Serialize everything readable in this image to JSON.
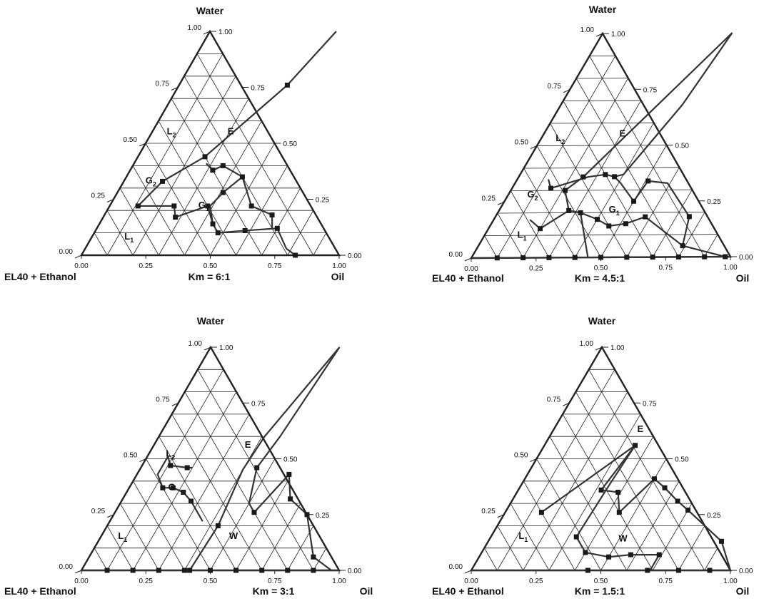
{
  "chart_data": [
    {
      "type": "scatter",
      "subtype": "ternary-phase-diagram",
      "title": "Km = 6:1",
      "vertices": {
        "top": "Water",
        "left": "EL40 +  Ethanol",
        "right": "Oil"
      },
      "left_ticks": [
        "0.00",
        "0.25",
        "0.50",
        "0.75",
        "1.00"
      ],
      "right_ticks": [
        "1.00",
        "0.75",
        "0.50",
        "0.25",
        "0.00"
      ],
      "bottom_ticks": [
        "0.00",
        "0.25",
        "0.50",
        "0.75",
        "1.00"
      ],
      "regions": [
        {
          "label": "E",
          "sub": "",
          "oil": 0.31,
          "water": 0.54
        },
        {
          "label": "L",
          "sub": "2",
          "oil": 0.08,
          "water": 0.54
        },
        {
          "label": "G",
          "sub": "2",
          "oil": 0.11,
          "water": 0.32
        },
        {
          "label": "G",
          "sub": "1",
          "oil": 0.37,
          "water": 0.21
        },
        {
          "label": "L",
          "sub": "1",
          "oil": 0.15,
          "water": 0.07
        }
      ],
      "boundaries": [
        [
          [
            0.49,
            1.0
          ],
          [
            0.42,
            0.76
          ],
          [
            0.26,
            0.44
          ],
          [
            0.15,
            0.33
          ],
          [
            0.11,
            0.22
          ],
          [
            0.25,
            0.22
          ],
          [
            0.28,
            0.17
          ],
          [
            0.38,
            0.22
          ],
          [
            0.44,
            0.14
          ]
        ],
        [
          [
            0.44,
            0.14
          ],
          [
            0.39,
            0.22
          ],
          [
            0.41,
            0.28
          ],
          [
            0.45,
            0.35
          ],
          [
            0.35,
            0.4
          ],
          [
            0.32,
            0.38
          ],
          [
            0.28,
            0.41
          ]
        ],
        [
          [
            0.44,
            0.14
          ],
          [
            0.48,
            0.1
          ],
          [
            0.58,
            0.11
          ],
          [
            0.7,
            0.12
          ],
          [
            0.78,
            0.03
          ]
        ],
        [
          [
            0.78,
            0.03
          ],
          [
            0.83,
            0.0
          ]
        ],
        [
          [
            0.45,
            0.35
          ],
          [
            0.55,
            0.22
          ],
          [
            0.65,
            0.18
          ],
          [
            0.68,
            0.12
          ]
        ]
      ],
      "points": [
        [
          0.42,
          0.76
        ],
        [
          0.26,
          0.44
        ],
        [
          0.15,
          0.33
        ],
        [
          0.11,
          0.22
        ],
        [
          0.25,
          0.22
        ],
        [
          0.28,
          0.17
        ],
        [
          0.38,
          0.22
        ],
        [
          0.44,
          0.14
        ],
        [
          0.41,
          0.28
        ],
        [
          0.45,
          0.35
        ],
        [
          0.35,
          0.4
        ],
        [
          0.32,
          0.38
        ],
        [
          0.48,
          0.1
        ],
        [
          0.58,
          0.11
        ],
        [
          0.7,
          0.12
        ],
        [
          0.83,
          0.0
        ],
        [
          0.55,
          0.22
        ],
        [
          0.65,
          0.18
        ]
      ]
    },
    {
      "type": "scatter",
      "subtype": "ternary-phase-diagram",
      "title": "Km = 4.5:1",
      "vertices": {
        "top": "Water",
        "left": "EL40 +  Ethanol",
        "right": "Oil"
      },
      "left_ticks": [
        "0.00",
        "0.25",
        "0.50",
        "0.75",
        "1.00"
      ],
      "right_ticks": [
        "1.00",
        "0.75",
        "0.50",
        "0.25",
        "0.00"
      ],
      "bottom_ticks": [
        "0.00",
        "0.25",
        "0.50",
        "0.75",
        "1.00"
      ],
      "regions": [
        {
          "label": "E",
          "sub": "",
          "oil": 0.31,
          "water": 0.54
        },
        {
          "label": "L",
          "sub": "2",
          "oil": 0.08,
          "water": 0.52
        },
        {
          "label": "G",
          "sub": "2",
          "oil": 0.1,
          "water": 0.27
        },
        {
          "label": "G",
          "sub": "1",
          "oil": 0.45,
          "water": 0.2
        },
        {
          "label": "L",
          "sub": "1",
          "oil": 0.15,
          "water": 0.09
        }
      ],
      "boundaries": [
        [
          [
            0.5,
            1.0
          ],
          [
            0.25,
            0.36
          ],
          [
            0.21,
            0.3
          ],
          [
            0.27,
            0.21
          ],
          [
            0.2,
            0.13
          ],
          [
            0.14,
            0.17
          ]
        ],
        [
          [
            0.5,
            1.0
          ],
          [
            0.47,
            0.68
          ],
          [
            0.4,
            0.37
          ],
          [
            0.37,
            0.36
          ]
        ],
        [
          [
            0.12,
            0.35
          ],
          [
            0.15,
            0.31
          ],
          [
            0.27,
            0.36
          ],
          [
            0.33,
            0.37
          ],
          [
            0.37,
            0.36
          ],
          [
            0.41,
            0.33
          ],
          [
            0.5,
            0.25
          ],
          [
            0.51,
            0.34
          ],
          [
            0.59,
            0.33
          ],
          [
            0.75,
            0.18
          ],
          [
            0.79,
            0.05
          ]
        ],
        [
          [
            0.27,
            0.21
          ],
          [
            0.32,
            0.2
          ],
          [
            0.4,
            0.17
          ],
          [
            0.46,
            0.14
          ],
          [
            0.52,
            0.15
          ],
          [
            0.58,
            0.18
          ]
        ],
        [
          [
            0.32,
            0.2
          ],
          [
            0.45,
            0.0
          ]
        ],
        [
          [
            0.58,
            0.18
          ],
          [
            0.79,
            0.05
          ],
          [
            0.98,
            0.0
          ]
        ],
        [
          [
            0.0,
            0.0
          ],
          [
            1.0,
            0.0
          ]
        ]
      ],
      "points": [
        [
          0.25,
          0.36
        ],
        [
          0.21,
          0.3
        ],
        [
          0.27,
          0.21
        ],
        [
          0.2,
          0.13
        ],
        [
          0.15,
          0.31
        ],
        [
          0.33,
          0.37
        ],
        [
          0.37,
          0.36
        ],
        [
          0.5,
          0.25
        ],
        [
          0.51,
          0.34
        ],
        [
          0.75,
          0.18
        ],
        [
          0.32,
          0.2
        ],
        [
          0.4,
          0.17
        ],
        [
          0.46,
          0.14
        ],
        [
          0.52,
          0.15
        ],
        [
          0.58,
          0.18
        ],
        [
          0.79,
          0.05
        ],
        [
          0.1,
          0.0
        ],
        [
          0.2,
          0.0
        ],
        [
          0.3,
          0.0
        ],
        [
          0.4,
          0.0
        ],
        [
          0.5,
          0.0
        ],
        [
          0.6,
          0.0
        ],
        [
          0.7,
          0.0
        ],
        [
          0.8,
          0.0
        ],
        [
          0.9,
          0.0
        ],
        [
          0.98,
          0.0
        ]
      ]
    },
    {
      "type": "scatter",
      "subtype": "ternary-phase-diagram",
      "title": "Km = 3:1",
      "vertices": {
        "top": "Water",
        "left": "EL40 +  Ethanol",
        "right": "Oil"
      },
      "left_ticks": [
        "0.00",
        "0.25",
        "0.50",
        "0.75",
        "1.00"
      ],
      "right_ticks": [
        "1.00",
        "0.75",
        "0.50",
        "0.25",
        "0.00"
      ],
      "bottom_ticks": [
        "0.00",
        "0.25",
        "0.50",
        "0.75",
        "1.00"
      ],
      "regions": [
        {
          "label": "E",
          "sub": "",
          "oil": 0.37,
          "water": 0.55
        },
        {
          "label": "L",
          "sub": "2",
          "oil": 0.09,
          "water": 0.51
        },
        {
          "label": "G",
          "sub": "",
          "oil": 0.17,
          "water": 0.36
        },
        {
          "label": "W",
          "sub": "",
          "oil": 0.52,
          "water": 0.14
        },
        {
          "label": "L",
          "sub": "1",
          "oil": 0.09,
          "water": 0.14
        }
      ],
      "boundaries": [
        [
          [
            0.5,
            1.0
          ],
          [
            0.41,
            0.6
          ],
          [
            0.4,
            0.45
          ],
          [
            0.43,
            0.2
          ],
          [
            0.42,
            0.0
          ]
        ],
        [
          [
            0.5,
            1.0
          ],
          [
            0.47,
            0.6
          ],
          [
            0.45,
            0.46
          ],
          [
            0.5,
            0.3
          ],
          [
            0.54,
            0.26
          ],
          [
            0.59,
            0.43
          ],
          [
            0.65,
            0.32
          ],
          [
            0.75,
            0.25
          ],
          [
            0.87,
            0.06
          ],
          [
            0.97,
            0.0
          ]
        ],
        [
          [
            0.08,
            0.51
          ],
          [
            0.08,
            0.43
          ],
          [
            0.13,
            0.37
          ],
          [
            0.17,
            0.37
          ],
          [
            0.22,
            0.35
          ],
          [
            0.27,
            0.31
          ],
          [
            0.36,
            0.22
          ]
        ],
        [
          [
            0.08,
            0.51
          ],
          [
            0.11,
            0.47
          ],
          [
            0.18,
            0.46
          ],
          [
            0.2,
            0.46
          ]
        ],
        [
          [
            0.0,
            0.0
          ],
          [
            1.0,
            0.0
          ]
        ]
      ],
      "points": [
        [
          0.43,
          0.2
        ],
        [
          0.42,
          0.0
        ],
        [
          0.45,
          0.46
        ],
        [
          0.54,
          0.26
        ],
        [
          0.59,
          0.43
        ],
        [
          0.65,
          0.32
        ],
        [
          0.75,
          0.25
        ],
        [
          0.87,
          0.06
        ],
        [
          0.13,
          0.37
        ],
        [
          0.17,
          0.37
        ],
        [
          0.22,
          0.35
        ],
        [
          0.27,
          0.31
        ],
        [
          0.11,
          0.47
        ],
        [
          0.18,
          0.46
        ],
        [
          0.1,
          0.0
        ],
        [
          0.2,
          0.0
        ],
        [
          0.3,
          0.0
        ],
        [
          0.4,
          0.0
        ],
        [
          0.5,
          0.0
        ],
        [
          0.6,
          0.0
        ],
        [
          0.7,
          0.0
        ],
        [
          0.8,
          0.0
        ],
        [
          0.9,
          0.0
        ]
      ]
    },
    {
      "type": "scatter",
      "subtype": "ternary-phase-diagram",
      "title": "Km = 1.5:1",
      "vertices": {
        "top": "Water",
        "left": "EL40 +  Ethanol",
        "right": "Oil"
      },
      "left_ticks": [
        "0.00",
        "0.25",
        "0.50",
        "0.75",
        "1.00"
      ],
      "right_ticks": [
        "1.00",
        "0.75",
        "0.50",
        "0.25",
        "0.00"
      ],
      "bottom_ticks": [
        "0.00",
        "0.25",
        "0.50",
        "0.75",
        "1.00"
      ],
      "regions": [
        {
          "label": "E",
          "sub": "",
          "oil": 0.34,
          "water": 0.62
        },
        {
          "label": "L",
          "sub": "1",
          "oil": 0.13,
          "water": 0.14
        },
        {
          "label": "W",
          "sub": "",
          "oil": 0.52,
          "water": 0.13
        }
      ],
      "boundaries": [
        [
          [
            0.14,
            0.26
          ],
          [
            0.35,
            0.56
          ]
        ],
        [
          [
            0.35,
            0.56
          ],
          [
            0.32,
            0.36
          ],
          [
            0.39,
            0.35
          ],
          [
            0.44,
            0.26
          ],
          [
            0.5,
            0.41
          ],
          [
            0.56,
            0.37
          ],
          [
            0.64,
            0.31
          ],
          [
            0.7,
            0.27
          ],
          [
            0.9,
            0.13
          ],
          [
            1.0,
            0.0
          ]
        ],
        [
          [
            0.35,
            0.56
          ],
          [
            0.34,
            0.39
          ],
          [
            0.33,
            0.15
          ],
          [
            0.4,
            0.08
          ],
          [
            0.5,
            0.06
          ],
          [
            0.58,
            0.07
          ],
          [
            0.69,
            0.07
          ],
          [
            0.69,
            0.0
          ]
        ],
        [
          [
            0.0,
            0.0
          ],
          [
            1.0,
            0.0
          ]
        ]
      ],
      "points": [
        [
          0.14,
          0.26
        ],
        [
          0.35,
          0.56
        ],
        [
          0.32,
          0.36
        ],
        [
          0.39,
          0.35
        ],
        [
          0.44,
          0.26
        ],
        [
          0.5,
          0.41
        ],
        [
          0.56,
          0.37
        ],
        [
          0.64,
          0.31
        ],
        [
          0.7,
          0.27
        ],
        [
          0.9,
          0.13
        ],
        [
          0.33,
          0.15
        ],
        [
          0.4,
          0.08
        ],
        [
          0.5,
          0.06
        ],
        [
          0.58,
          0.07
        ],
        [
          0.69,
          0.07
        ],
        [
          0.45,
          0.0
        ],
        [
          0.68,
          0.0
        ],
        [
          0.8,
          0.0
        ],
        [
          0.92,
          0.0
        ]
      ]
    }
  ]
}
